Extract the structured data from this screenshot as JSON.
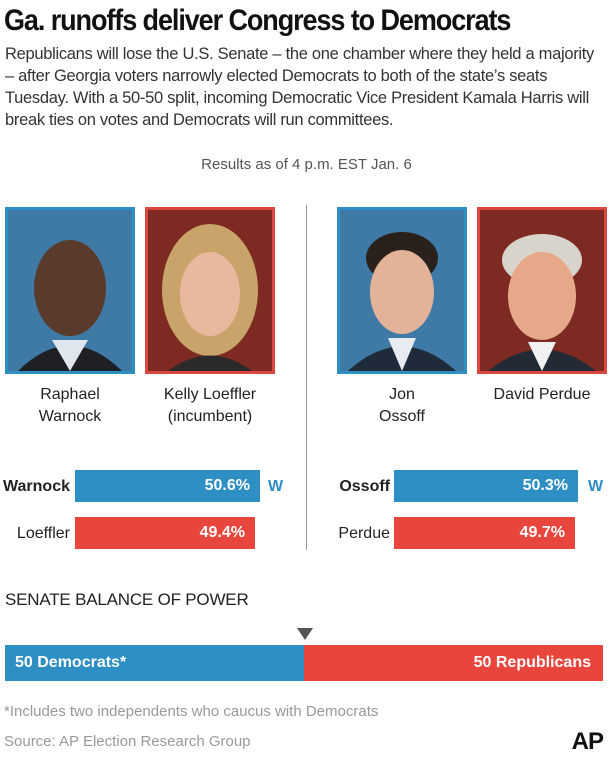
{
  "headline": "Ga. runoffs deliver Congress to Democrats",
  "dek": "Republicans will lose the U.S. Senate – the one chamber where they held a majority – after Georgia voters narrowly elected Democrats to both of the state’s seats Tuesday. With a 50-50 split, incoming Democratic Vice President Kamala Harris will break ties on votes and Democrats will run committees.",
  "as_of": "Results as of 4 p.m. EST Jan. 6",
  "candidates": [
    {
      "line1": "Raphael",
      "line2": "Warnock"
    },
    {
      "line1": "Kelly Loeffler",
      "line2": "(incumbent)"
    },
    {
      "line1": "Jon",
      "line2": "Ossoff"
    },
    {
      "line1": "David Perdue",
      "line2": ""
    }
  ],
  "colors": {
    "democrat": "#2e8fc4",
    "republican": "#e8453c"
  },
  "chart_data": [
    {
      "type": "bar",
      "categories": [
        "Warnock",
        "Loeffler"
      ],
      "values": [
        50.6,
        49.4
      ],
      "value_labels": [
        "50.6%",
        "49.4%"
      ],
      "winner": "Warnock",
      "winner_mark": "W"
    },
    {
      "type": "bar",
      "categories": [
        "Ossoff",
        "Perdue"
      ],
      "values": [
        50.3,
        49.7
      ],
      "value_labels": [
        "50.3%",
        "49.7%"
      ],
      "winner": "Ossoff",
      "winner_mark": "W"
    },
    {
      "type": "bar",
      "title": "SENATE BALANCE OF POWER",
      "categories": [
        "50 Democrats*",
        "50 Republicans"
      ],
      "values": [
        50,
        50
      ]
    }
  ],
  "footnote": "*Includes two independents who caucus with Democrats",
  "source": "Source: AP Election Research Group",
  "logo": "AP"
}
